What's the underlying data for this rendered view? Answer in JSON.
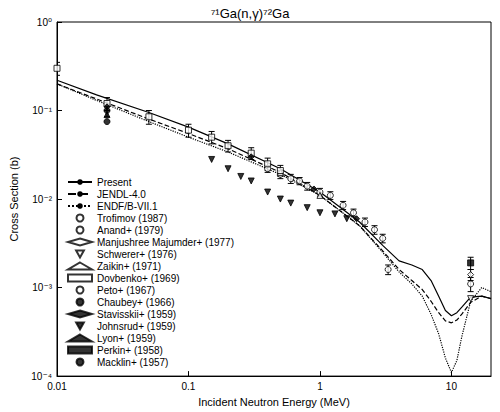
{
  "chart_data": {
    "type": "scatter",
    "title": "⁷¹Ga(n,γ)⁷²Ga",
    "x_label": "Incident Neutron Energy (MeV)",
    "y_label": "Cross Section (b)",
    "log": true,
    "grid": false,
    "legend": "bottom-left",
    "xlim": [
      0.01,
      20
    ],
    "xticks": [
      0.01,
      0.1,
      1,
      10
    ],
    "ylim": [
      0.0001,
      1
    ],
    "yticks": [
      {
        "value": 0.0001,
        "label": "10⁻⁴"
      },
      {
        "value": 0.001,
        "label": "10⁻³"
      },
      {
        "value": 0.01,
        "label": "10⁻²"
      },
      {
        "value": 0.1,
        "label": "10⁻¹"
      },
      {
        "value": 1,
        "label": "10⁰"
      }
    ],
    "series": [
      {
        "name": "Present",
        "type": "line",
        "line_style": "solid",
        "color": "#000000",
        "x": [
          0.01,
          0.02,
          0.05,
          0.1,
          0.2,
          0.5,
          1,
          2,
          3,
          4,
          5,
          6,
          7,
          8,
          9,
          10,
          11,
          12,
          14,
          17,
          20
        ],
        "values": [
          0.22,
          0.15,
          0.095,
          0.065,
          0.042,
          0.022,
          0.012,
          0.0055,
          0.003,
          0.002,
          0.0018,
          0.0016,
          0.0012,
          0.0008,
          0.00055,
          0.00048,
          0.00052,
          0.0006,
          0.00078,
          0.0008,
          0.00075
        ]
      },
      {
        "name": "JENDL-4.0",
        "type": "line",
        "line_style": "dashed",
        "color": "#000000",
        "x": [
          0.01,
          0.02,
          0.05,
          0.1,
          0.2,
          0.5,
          1,
          2,
          3,
          4,
          5,
          6,
          7,
          8,
          9,
          10,
          11,
          12,
          14,
          17,
          20
        ],
        "values": [
          0.2,
          0.135,
          0.08,
          0.055,
          0.037,
          0.02,
          0.011,
          0.005,
          0.0026,
          0.0016,
          0.0012,
          0.00095,
          0.0007,
          0.00052,
          0.00042,
          0.0004,
          0.00043,
          0.0005,
          0.00068,
          0.0008,
          0.00075
        ]
      },
      {
        "name": "ENDF/B-VII.1",
        "type": "line",
        "line_style": "dotted",
        "color": "#000000",
        "x": [
          0.01,
          0.02,
          0.05,
          0.1,
          0.2,
          0.5,
          1,
          2,
          3,
          4,
          5,
          6,
          7,
          8,
          9,
          10,
          11,
          12,
          14,
          17,
          20
        ],
        "values": [
          0.2,
          0.13,
          0.075,
          0.05,
          0.034,
          0.019,
          0.011,
          0.005,
          0.0025,
          0.0015,
          0.0011,
          0.0008,
          0.0005,
          0.0003,
          0.00016,
          0.00011,
          0.00015,
          0.00028,
          0.0007,
          0.001,
          0.0009
        ]
      },
      {
        "name": "Trofimov (1987)",
        "type": "scatter",
        "marker": "circle-open",
        "color": "#000000",
        "x": [
          0.4,
          0.5,
          0.6,
          0.7,
          0.8,
          1.0,
          1.2,
          1.5,
          1.8,
          2.2,
          2.6,
          3.0
        ],
        "values": [
          0.022,
          0.019,
          0.017,
          0.016,
          0.014,
          0.012,
          0.011,
          0.0085,
          0.007,
          0.0055,
          0.0045,
          0.0036
        ],
        "yerr": [
          0.002,
          0.002,
          0.002,
          0.0015,
          0.0014,
          0.0012,
          0.0011,
          0.0009,
          0.0007,
          0.0006,
          0.0005,
          0.0004
        ]
      },
      {
        "name": "Anand+ (1979)",
        "type": "scatter",
        "marker": "circle-open",
        "color": "#000000",
        "x": [
          3.3
        ],
        "values": [
          0.0016
        ],
        "yerr": [
          0.0002
        ]
      },
      {
        "name": "Manjushree Majumder+ (1977)",
        "type": "scatter",
        "marker": "diamond-open",
        "color": "#000000",
        "x": [
          14
        ],
        "values": [
          0.0014
        ],
        "yerr": [
          0.0002
        ]
      },
      {
        "name": "Schwerer+ (1976)",
        "type": "scatter",
        "marker": "triangle-down-open",
        "color": "#000000",
        "x": [
          14
        ],
        "values": [
          0.00075
        ]
      },
      {
        "name": "Zaikin+ (1971)",
        "type": "scatter",
        "marker": "triangle-open",
        "color": "#000000",
        "x": [
          0.5,
          1.0
        ],
        "values": [
          0.02,
          0.011
        ]
      },
      {
        "name": "Dovbenko+ (1969)",
        "type": "scatter",
        "marker": "square-open",
        "color": "#000000",
        "x": [
          0.01,
          0.024,
          0.05,
          0.1,
          0.15,
          0.2,
          0.3,
          0.4,
          0.5
        ],
        "values": [
          0.3,
          0.12,
          0.085,
          0.06,
          0.05,
          0.04,
          0.033,
          0.025,
          0.021
        ],
        "yerr": [
          0.05,
          0.02,
          0.015,
          0.01,
          0.008,
          0.006,
          0.005,
          0.004,
          0.003
        ]
      },
      {
        "name": "Peto+ (1967)",
        "type": "scatter",
        "marker": "circle-open",
        "color": "#000000",
        "x": [
          14
        ],
        "values": [
          0.0011
        ],
        "yerr": [
          0.0002
        ]
      },
      {
        "name": "Chaubey+ (1966)",
        "type": "scatter",
        "marker": "circle-filled",
        "color": "#000000",
        "x": [
          0.024
        ],
        "values": [
          0.1
        ],
        "yerr": [
          0.015
        ]
      },
      {
        "name": "Stavisskii+ (1959)",
        "type": "scatter",
        "marker": "diamond-filled",
        "color": "#000000",
        "x": [
          0.024,
          0.3,
          0.9,
          1.9
        ],
        "values": [
          0.11,
          0.03,
          0.013,
          0.006
        ]
      },
      {
        "name": "Johnsrud+ (1959)",
        "type": "scatter",
        "marker": "triangle-down-filled",
        "color": "#000000",
        "x": [
          0.15,
          0.2,
          0.25,
          0.3,
          0.4,
          0.5,
          0.6,
          0.8,
          1.0,
          1.3,
          1.6
        ],
        "values": [
          0.028,
          0.022,
          0.018,
          0.016,
          0.012,
          0.01,
          0.009,
          0.008,
          0.007,
          0.0068,
          0.006
        ]
      },
      {
        "name": "Lyon+ (1959)",
        "type": "scatter",
        "marker": "triangle-filled",
        "color": "#000000",
        "x": [
          0.024
        ],
        "values": [
          0.09
        ]
      },
      {
        "name": "Perkin+ (1958)",
        "type": "scatter",
        "marker": "square-filled",
        "color": "#000000",
        "x": [
          14
        ],
        "values": [
          0.0019
        ],
        "yerr": [
          0.0003
        ]
      },
      {
        "name": "Macklin+ (1957)",
        "type": "scatter",
        "marker": "circle-filled",
        "color": "#000000",
        "x": [
          0.024
        ],
        "values": [
          0.075
        ]
      }
    ]
  }
}
